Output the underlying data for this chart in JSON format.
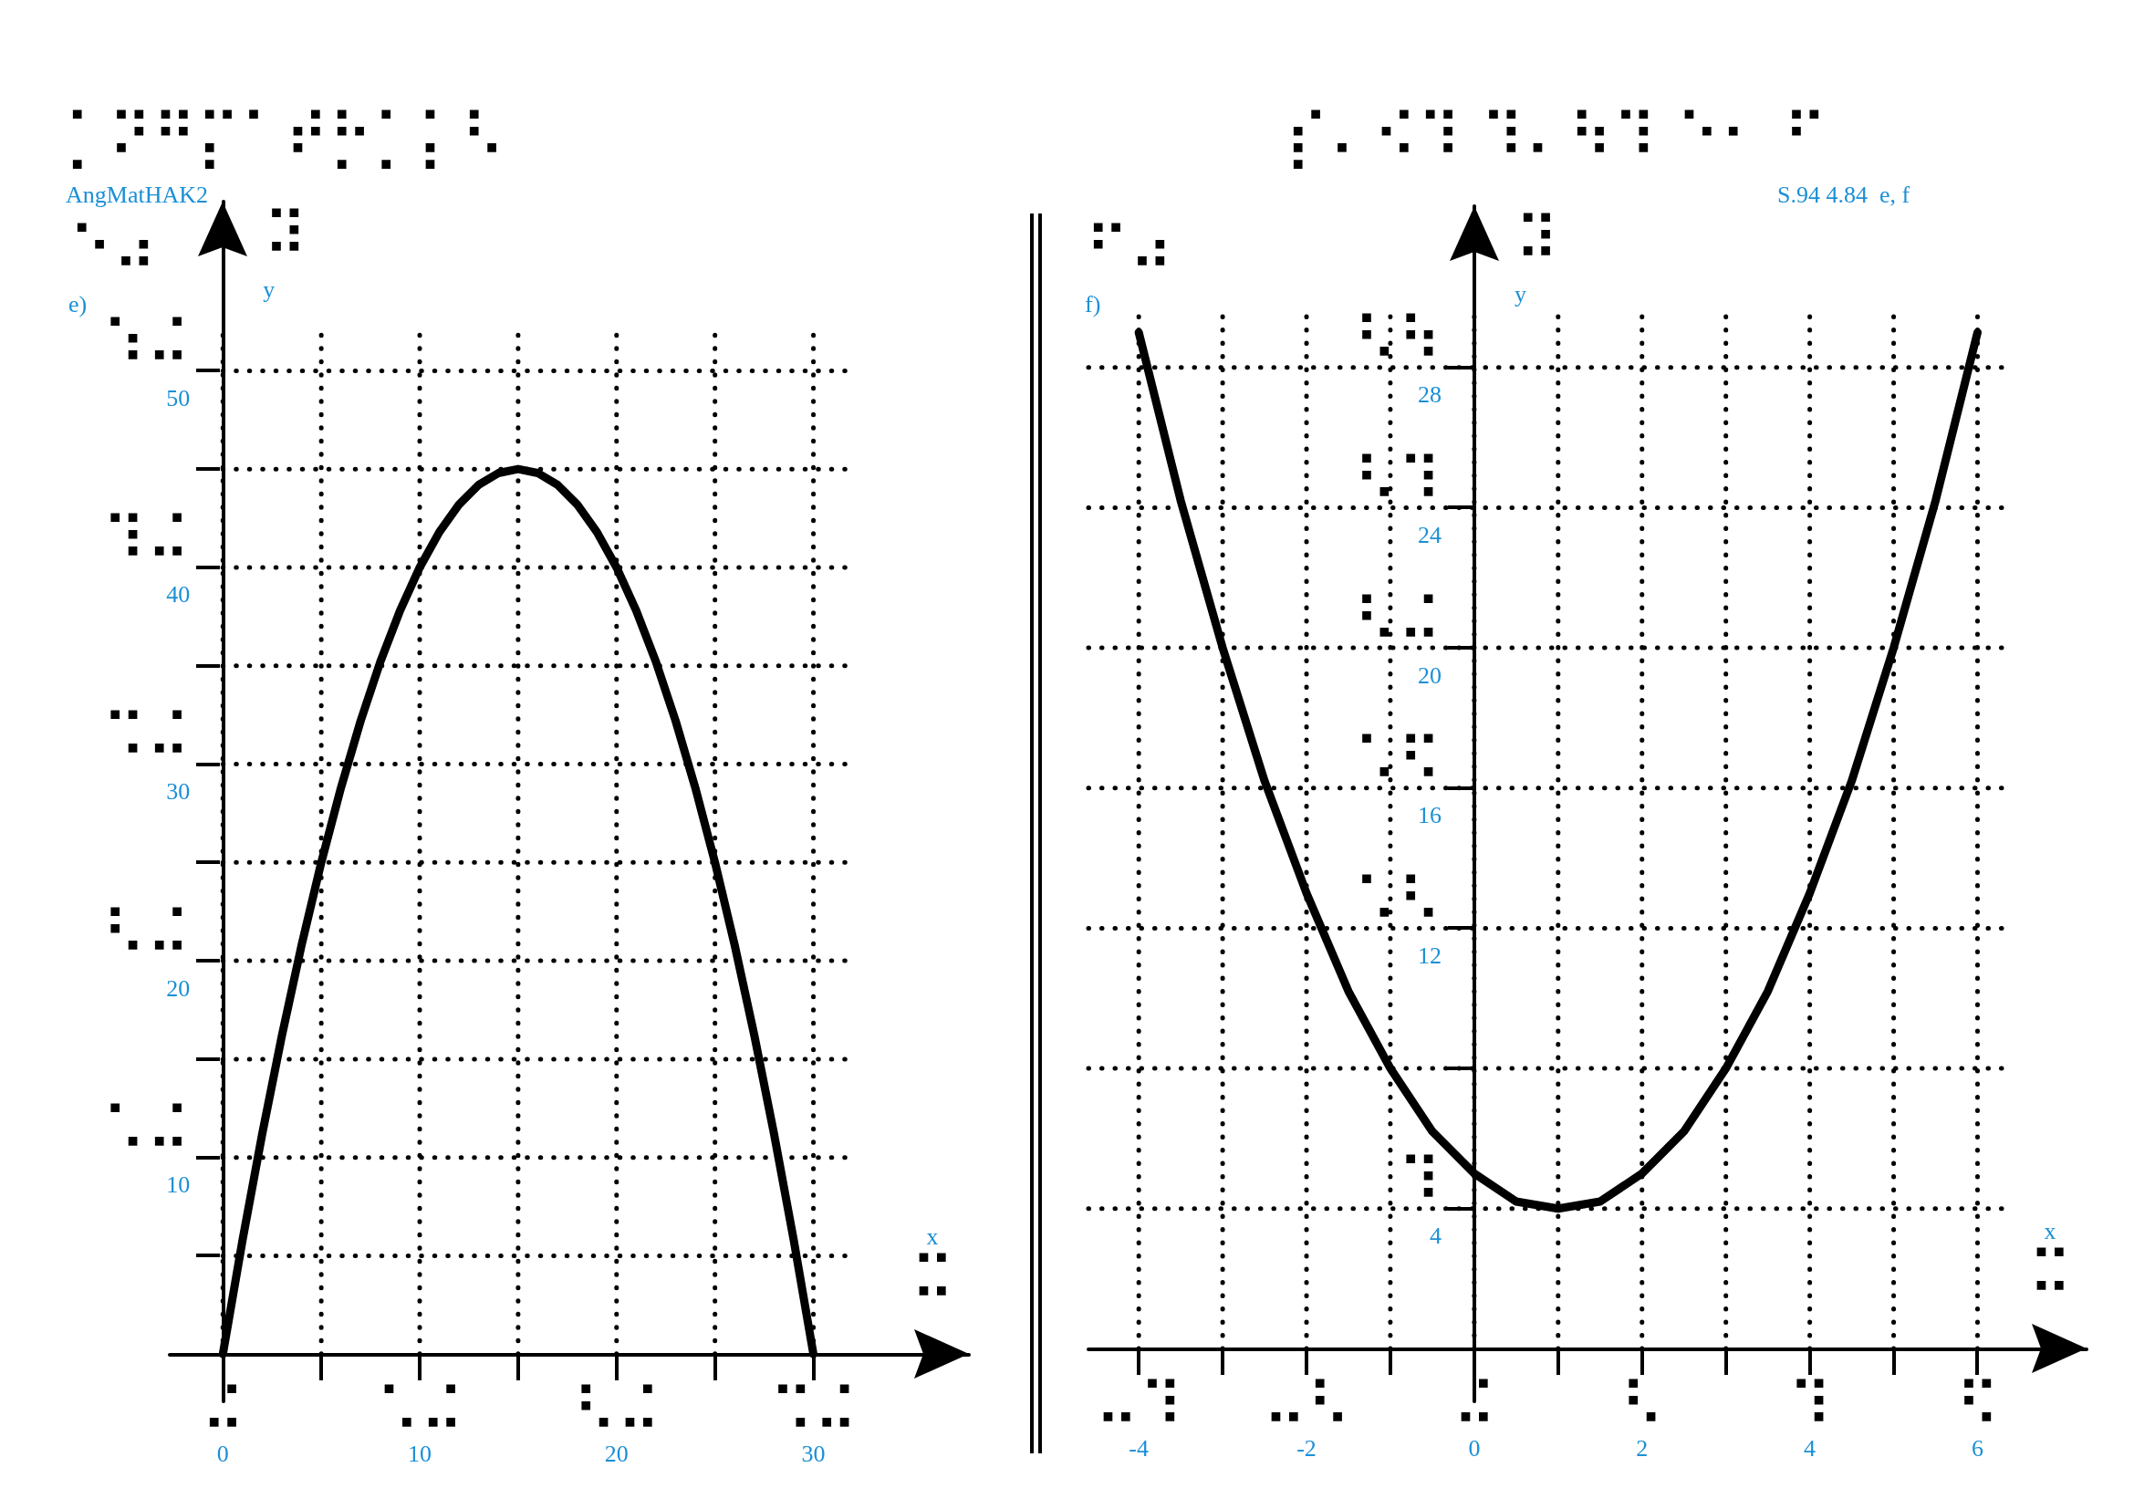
{
  "chart_data": [
    {
      "type": "line",
      "title": "⠑⠴\ne)",
      "xlabel": "x\n⠭",
      "ylabel": "⠽\ny",
      "annotations": [
        "⡁⠝⠛⡍⠁⠞⡓⡁⡅⠣",
        "AngMatHAK2"
      ],
      "x": [
        0,
        1,
        2,
        3,
        4,
        5,
        6,
        7,
        8,
        9,
        10,
        11,
        12,
        13,
        14,
        15,
        16,
        17,
        18,
        19,
        20,
        21,
        22,
        23,
        24,
        25,
        26,
        27,
        28,
        29,
        30
      ],
      "series": [
        {
          "color": "#000000",
          "values": [
            0,
            5.8,
            11.2,
            16.2,
            20.8,
            25,
            28.8,
            32.2,
            35.2,
            37.8,
            40,
            41.8,
            43.2,
            44.2,
            44.8,
            45,
            44.8,
            44.2,
            43.2,
            41.8,
            40,
            37.8,
            35.2,
            32.2,
            28.8,
            25,
            20.8,
            16.2,
            11.2,
            5.8,
            0
          ]
        }
      ],
      "xlim": [
        -2.7,
        37.9
      ],
      "ylim": [
        -2.4,
        58.6
      ],
      "xticks": [
        {
          "value": 0,
          "label": "⠬\n0"
        },
        {
          "value": 5,
          "label": null
        },
        {
          "value": 10,
          "label": "⠡⠬\n10"
        },
        {
          "value": 15,
          "label": null
        },
        {
          "value": 20,
          "label": "⠣⠬\n20"
        },
        {
          "value": 25,
          "label": null
        },
        {
          "value": 30,
          "label": "⠩⠬\n30"
        }
      ],
      "yticks": [
        {
          "value": 5,
          "label": null
        },
        {
          "value": 10,
          "label": "⠡⠬\n10"
        },
        {
          "value": 15,
          "label": null
        },
        {
          "value": 20,
          "label": "⠣⠬\n20"
        },
        {
          "value": 25,
          "label": null
        },
        {
          "value": 30,
          "label": "⠩⠬\n30"
        },
        {
          "value": 35,
          "label": null
        },
        {
          "value": 40,
          "label": "⠹⠬\n40"
        },
        {
          "value": 45,
          "label": null
        },
        {
          "value": 50,
          "label": "⠱⠬\n50"
        }
      ],
      "grid": true,
      "marker": "none",
      "line_style": "solid"
    },
    {
      "type": "line",
      "title": "⠋⠴\nf)",
      "xlabel": "x\n⠭",
      "ylabel": "⠽\ny",
      "annotations": [
        "⡎⠄⠪⠹ ⠹⠄⠳⠹ ⠑⠂ ⠋",
        "S.94 4.84  e, f"
      ],
      "x": [
        -4,
        -3.5,
        -3,
        -2.5,
        -2,
        -1.5,
        -1,
        -0.5,
        0,
        0.5,
        1,
        1.5,
        2,
        2.5,
        3,
        3.5,
        4,
        4.5,
        5,
        5.5,
        6
      ],
      "series": [
        {
          "color": "#000000",
          "values": [
            29,
            24.2,
            20,
            16.2,
            13,
            10.2,
            8,
            6.2,
            5,
            4.2,
            4,
            4.2,
            5,
            6.2,
            8,
            10.2,
            13,
            16.2,
            20,
            24.2,
            29
          ]
        }
      ],
      "xlim": [
        -4.6,
        7.3
      ],
      "ylim": [
        -1.5,
        32.6
      ],
      "xticks": [
        {
          "value": -4,
          "label": "⠤⠹\n-4"
        },
        {
          "value": -3,
          "label": null
        },
        {
          "value": -2,
          "label": "⠤⠣\n-2"
        },
        {
          "value": -1,
          "label": null
        },
        {
          "value": 0,
          "label": "⠬\n0"
        },
        {
          "value": 1,
          "label": null
        },
        {
          "value": 2,
          "label": "⠣\n2"
        },
        {
          "value": 3,
          "label": null
        },
        {
          "value": 4,
          "label": "⠹\n4"
        },
        {
          "value": 5,
          "label": null
        },
        {
          "value": 6,
          "label": "⠫\n6"
        }
      ],
      "yticks": [
        {
          "value": 4,
          "label": "⠹\n4"
        },
        {
          "value": 8,
          "label": null
        },
        {
          "value": 12,
          "label": "⠡⠣\n12"
        },
        {
          "value": 16,
          "label": "⠡⠫\n16"
        },
        {
          "value": 20,
          "label": "⠣⠬\n20"
        },
        {
          "value": 24,
          "label": "⠣⠹\n24"
        },
        {
          "value": 28,
          "label": "⠣⠳\n28"
        }
      ],
      "grid": true,
      "marker": "none",
      "line_style": "solid"
    }
  ]
}
